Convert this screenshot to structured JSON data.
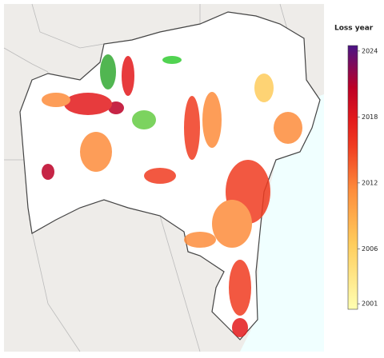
{
  "legend": {
    "title": "Loss year",
    "range": [
      2000.5,
      2024.5
    ],
    "ticks": [
      2001,
      2006,
      2012,
      2018,
      2024
    ]
  }
}
